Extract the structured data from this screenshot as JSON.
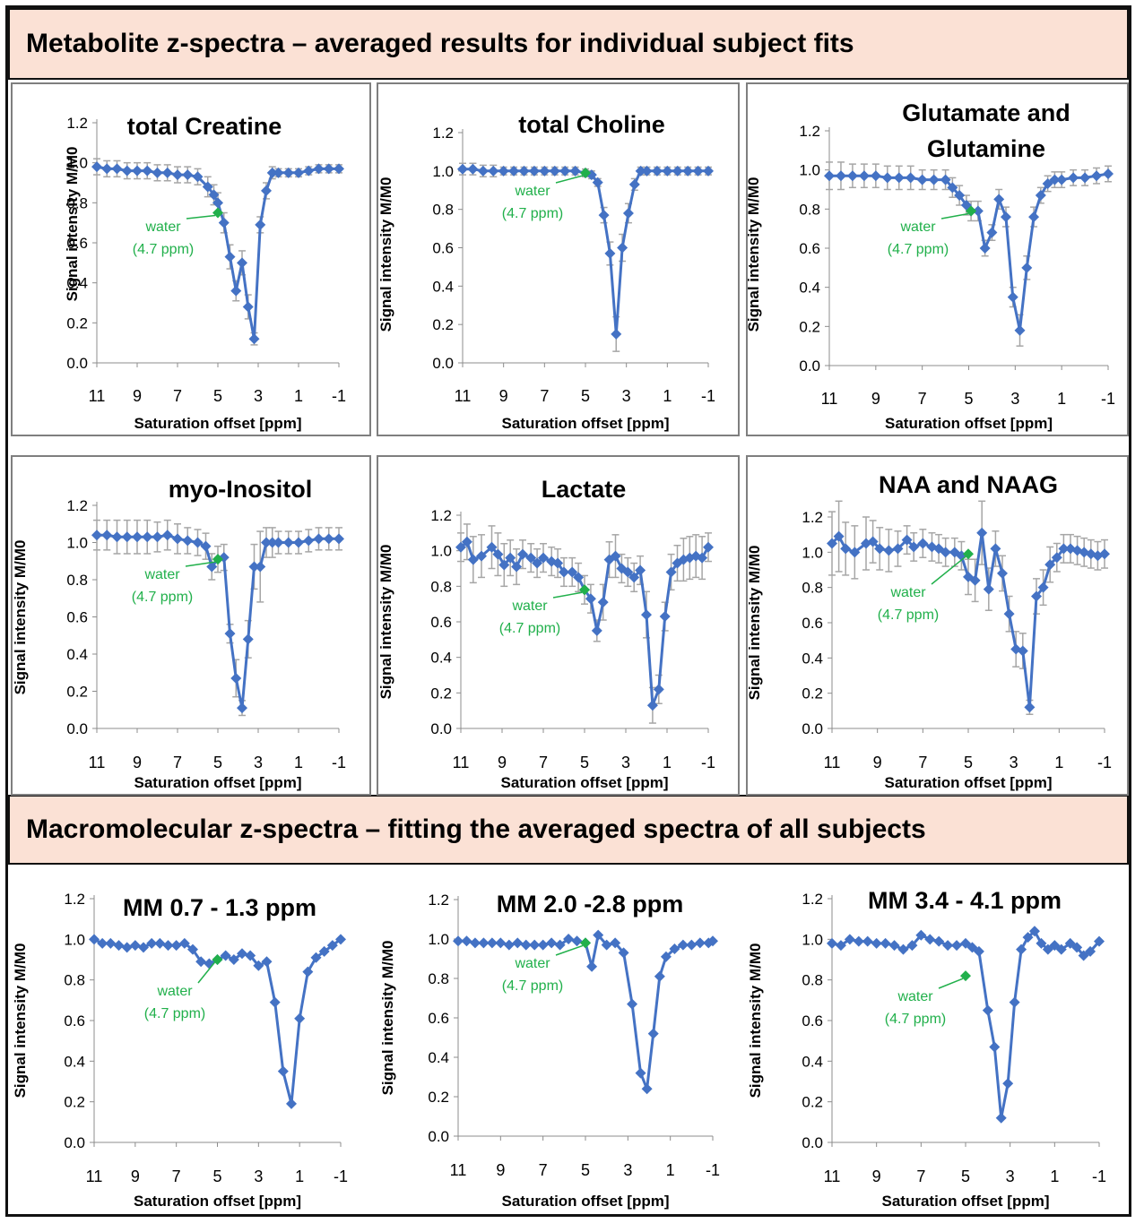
{
  "colors": {
    "series": "#4472c4",
    "errorbar": "#a6a6a6",
    "water": "#21b04b",
    "banner": "#fbe1d5"
  },
  "headers": {
    "metabolite": "Metabolite z-spectra – averaged results for individual subject fits",
    "macromolecular": "Macromolecular z-spectra – fitting the averaged spectra of all subjects"
  },
  "chart_data": [
    {
      "type": "line",
      "title": [
        "total Creatine"
      ],
      "xlabel": "Saturation offset [ppm]",
      "ylabel": "Signal intensity M/M0",
      "xlim": [
        11,
        -1
      ],
      "ylim": [
        0,
        1.2
      ],
      "xticks": [
        "11",
        "9",
        "7",
        "5",
        "3",
        "1",
        "-1"
      ],
      "yticks": [
        "0.0",
        "0.2",
        "0.4",
        "0.6",
        "0.8",
        "1.0",
        "1.2"
      ],
      "water_point": {
        "x": 5.0,
        "y": 0.75
      },
      "annotation": [
        "water",
        "(4.7 ppm)"
      ],
      "x": [
        11,
        10.5,
        10,
        9.5,
        9,
        8.5,
        8,
        7.5,
        7,
        6.5,
        6,
        5.5,
        5.2,
        5,
        4.7,
        4.4,
        4.1,
        3.8,
        3.5,
        3.2,
        2.9,
        2.6,
        2.3,
        2,
        1.5,
        1,
        0.5,
        0,
        -0.5,
        -1
      ],
      "y": [
        0.98,
        0.97,
        0.97,
        0.96,
        0.96,
        0.96,
        0.95,
        0.95,
        0.94,
        0.94,
        0.93,
        0.88,
        0.84,
        0.8,
        0.7,
        0.53,
        0.36,
        0.5,
        0.28,
        0.12,
        0.69,
        0.86,
        0.95,
        0.95,
        0.95,
        0.95,
        0.96,
        0.97,
        0.97,
        0.97
      ],
      "err": [
        0.04,
        0.04,
        0.04,
        0.04,
        0.04,
        0.04,
        0.04,
        0.04,
        0.04,
        0.04,
        0.04,
        0.05,
        0.05,
        0.05,
        0.05,
        0.06,
        0.05,
        0.06,
        0.06,
        0.03,
        0.04,
        0.04,
        0.03,
        0.02,
        0.02,
        0.02,
        0.02,
        0.02,
        0.02,
        0.02
      ]
    },
    {
      "type": "line",
      "title": [
        "total Choline"
      ],
      "xlabel": "Saturation offset [ppm]",
      "ylabel": "Signal intensity M/M0",
      "xlim": [
        11,
        -1
      ],
      "ylim": [
        0,
        1.2
      ],
      "xticks": [
        "11",
        "9",
        "7",
        "5",
        "3",
        "1",
        "-1"
      ],
      "yticks": [
        "0.0",
        "0.2",
        "0.4",
        "0.6",
        "0.8",
        "1.0",
        "1.2"
      ],
      "water_point": {
        "x": 5.0,
        "y": 0.99
      },
      "annotation": [
        "water",
        "(4.7 ppm)"
      ],
      "x": [
        11,
        10.5,
        10,
        9.5,
        9,
        8.5,
        8,
        7.5,
        7,
        6.5,
        6,
        5.5,
        5,
        4.7,
        4.4,
        4.1,
        3.8,
        3.5,
        3.2,
        2.9,
        2.6,
        2.3,
        2,
        1.5,
        1,
        0.5,
        0,
        -0.5,
        -1
      ],
      "y": [
        1.01,
        1.01,
        1.0,
        1.0,
        1.0,
        1.0,
        1.0,
        1.0,
        1.0,
        1.0,
        1.0,
        1.0,
        0.99,
        0.98,
        0.94,
        0.77,
        0.57,
        0.15,
        0.6,
        0.78,
        0.93,
        1.0,
        1.0,
        1.0,
        1.0,
        1.0,
        1.0,
        1.0,
        1.0
      ],
      "err": [
        0.03,
        0.03,
        0.03,
        0.03,
        0.02,
        0.02,
        0.02,
        0.02,
        0.02,
        0.02,
        0.02,
        0.02,
        0.02,
        0.02,
        0.02,
        0.04,
        0.06,
        0.09,
        0.07,
        0.05,
        0.03,
        0.02,
        0.02,
        0.02,
        0.02,
        0.02,
        0.02,
        0.02,
        0.02
      ]
    },
    {
      "type": "line",
      "title": [
        "Glutamate and",
        "Glutamine"
      ],
      "xlabel": "Saturation offset [ppm]",
      "ylabel": "Signal intensity M/M0",
      "xlim": [
        11,
        -1
      ],
      "ylim": [
        0,
        1.2
      ],
      "xticks": [
        "11",
        "9",
        "7",
        "5",
        "3",
        "1",
        "-1"
      ],
      "yticks": [
        "0.0",
        "0.2",
        "0.4",
        "0.6",
        "0.8",
        "1.0",
        "1.2"
      ],
      "water_point": {
        "x": 4.9,
        "y": 0.79
      },
      "annotation": [
        "water",
        "(4.7 ppm)"
      ],
      "x": [
        11,
        10.5,
        10,
        9.5,
        9,
        8.5,
        8,
        7.5,
        7,
        6.5,
        6,
        5.7,
        5.4,
        5.1,
        4.9,
        4.6,
        4.3,
        4.0,
        3.7,
        3.4,
        3.1,
        2.8,
        2.5,
        2.2,
        1.9,
        1.6,
        1.3,
        1,
        0.5,
        0,
        -0.5,
        -1
      ],
      "y": [
        0.97,
        0.97,
        0.97,
        0.97,
        0.97,
        0.96,
        0.96,
        0.96,
        0.95,
        0.95,
        0.95,
        0.91,
        0.87,
        0.82,
        0.79,
        0.79,
        0.6,
        0.68,
        0.85,
        0.76,
        0.35,
        0.18,
        0.5,
        0.76,
        0.87,
        0.93,
        0.95,
        0.95,
        0.96,
        0.96,
        0.97,
        0.98
      ],
      "err": [
        0.07,
        0.07,
        0.06,
        0.06,
        0.06,
        0.06,
        0.06,
        0.06,
        0.05,
        0.05,
        0.05,
        0.05,
        0.05,
        0.05,
        0.05,
        0.05,
        0.04,
        0.04,
        0.05,
        0.05,
        0.05,
        0.08,
        0.06,
        0.05,
        0.04,
        0.04,
        0.04,
        0.04,
        0.04,
        0.04,
        0.04,
        0.04
      ]
    },
    {
      "type": "line",
      "title": [
        "myo-Inositol"
      ],
      "xlabel": "Saturation offset [ppm]",
      "ylabel": "Signal intensity M/M0",
      "xlim": [
        11,
        -1
      ],
      "ylim": [
        0,
        1.2
      ],
      "xticks": [
        "11",
        "9",
        "7",
        "5",
        "3",
        "1",
        "-1"
      ],
      "yticks": [
        "0.0",
        "0.2",
        "0.4",
        "0.6",
        "0.8",
        "1.0",
        "1.2"
      ],
      "water_point": {
        "x": 5.0,
        "y": 0.91
      },
      "annotation": [
        "water",
        "(4.7 ppm)"
      ],
      "x": [
        11,
        10.5,
        10,
        9.5,
        9,
        8.5,
        8,
        7.5,
        7,
        6.5,
        6,
        5.6,
        5.3,
        5.0,
        4.7,
        4.4,
        4.1,
        3.8,
        3.5,
        3.2,
        2.9,
        2.6,
        2.3,
        2,
        1.5,
        1,
        0.5,
        0,
        -0.5,
        -1
      ],
      "y": [
        1.04,
        1.04,
        1.03,
        1.03,
        1.03,
        1.03,
        1.03,
        1.04,
        1.02,
        1.01,
        1.0,
        0.98,
        0.87,
        0.91,
        0.92,
        0.51,
        0.27,
        0.11,
        0.48,
        0.87,
        0.87,
        1.0,
        1.0,
        1.0,
        1.0,
        1.0,
        1.01,
        1.02,
        1.02,
        1.02
      ],
      "err": [
        0.08,
        0.08,
        0.09,
        0.09,
        0.09,
        0.09,
        0.08,
        0.08,
        0.08,
        0.07,
        0.07,
        0.07,
        0.07,
        0.07,
        0.07,
        0.05,
        0.1,
        0.04,
        0.1,
        0.12,
        0.19,
        0.08,
        0.08,
        0.06,
        0.06,
        0.06,
        0.06,
        0.06,
        0.06,
        0.06
      ]
    },
    {
      "type": "line",
      "title": [
        "Lactate"
      ],
      "xlabel": "Saturation offset [ppm]",
      "ylabel": "Signal intensity M/M0",
      "xlim": [
        11,
        -1
      ],
      "ylim": [
        0,
        1.2
      ],
      "xticks": [
        "11",
        "9",
        "7",
        "5",
        "3",
        "1",
        "-1"
      ],
      "yticks": [
        "0.0",
        "0.2",
        "0.4",
        "0.6",
        "0.8",
        "1.0",
        "1.2"
      ],
      "water_point": {
        "x": 5.0,
        "y": 0.78
      },
      "annotation": [
        "water",
        "(4.7 ppm)"
      ],
      "x": [
        11,
        10.7,
        10.4,
        10,
        9.5,
        9.2,
        8.9,
        8.6,
        8.3,
        8,
        7.6,
        7.3,
        7,
        6.6,
        6.3,
        6,
        5.6,
        5.3,
        5,
        4.7,
        4.4,
        4.1,
        3.8,
        3.5,
        3.2,
        2.9,
        2.6,
        2.3,
        2,
        1.7,
        1.4,
        1.1,
        0.8,
        0.5,
        0.2,
        -0.1,
        -0.4,
        -0.7,
        -1
      ],
      "y": [
        1.02,
        1.05,
        0.95,
        0.97,
        1.02,
        0.98,
        0.92,
        0.96,
        0.91,
        0.98,
        0.96,
        0.93,
        0.96,
        0.94,
        0.93,
        0.88,
        0.88,
        0.85,
        0.78,
        0.73,
        0.55,
        0.71,
        0.95,
        0.97,
        0.9,
        0.88,
        0.85,
        0.89,
        0.64,
        0.13,
        0.22,
        0.63,
        0.88,
        0.93,
        0.95,
        0.96,
        0.97,
        0.96,
        1.02
      ],
      "err": [
        0.08,
        0.1,
        0.13,
        0.12,
        0.12,
        0.12,
        0.12,
        0.1,
        0.1,
        0.08,
        0.08,
        0.08,
        0.08,
        0.08,
        0.08,
        0.08,
        0.08,
        0.08,
        0.08,
        0.08,
        0.06,
        0.1,
        0.1,
        0.12,
        0.08,
        0.08,
        0.08,
        0.08,
        0.13,
        0.1,
        0.08,
        0.08,
        0.1,
        0.1,
        0.12,
        0.12,
        0.12,
        0.12,
        0.08
      ]
    },
    {
      "type": "line",
      "title": [
        "NAA and NAAG"
      ],
      "xlabel": "Saturation offset [ppm]",
      "ylabel": "Signal intensity M/M0",
      "xlim": [
        11,
        -1
      ],
      "ylim": [
        0,
        1.2
      ],
      "xticks": [
        "11",
        "9",
        "7",
        "5",
        "3",
        "1",
        "-1"
      ],
      "yticks": [
        "0.0",
        "0.2",
        "0.4",
        "0.6",
        "0.8",
        "1.0",
        "1.2"
      ],
      "water_point": {
        "x": 5.0,
        "y": 0.99
      },
      "annotation": [
        "water",
        "(4.7 ppm)"
      ],
      "x": [
        11,
        10.7,
        10.4,
        10,
        9.5,
        9.2,
        8.9,
        8.5,
        8.1,
        7.7,
        7.4,
        7,
        6.6,
        6.3,
        6,
        5.6,
        5.3,
        5,
        4.7,
        4.4,
        4.1,
        3.8,
        3.5,
        3.2,
        2.9,
        2.6,
        2.3,
        2,
        1.7,
        1.4,
        1.1,
        0.8,
        0.5,
        0.2,
        -0.1,
        -0.4,
        -0.7,
        -1
      ],
      "y": [
        1.05,
        1.09,
        1.02,
        1.0,
        1.05,
        1.06,
        1.02,
        1.01,
        1.02,
        1.07,
        1.03,
        1.05,
        1.03,
        1.02,
        1.0,
        1.0,
        0.98,
        0.86,
        0.84,
        1.11,
        0.79,
        1.02,
        0.88,
        0.65,
        0.45,
        0.44,
        0.12,
        0.75,
        0.8,
        0.93,
        0.97,
        1.02,
        1.02,
        1.01,
        1.0,
        0.99,
        0.98,
        0.99
      ],
      "err": [
        0.18,
        0.2,
        0.15,
        0.15,
        0.15,
        0.12,
        0.12,
        0.12,
        0.1,
        0.08,
        0.08,
        0.08,
        0.08,
        0.08,
        0.08,
        0.08,
        0.08,
        0.1,
        0.12,
        0.18,
        0.12,
        0.1,
        0.1,
        0.1,
        0.1,
        0.1,
        0.04,
        0.1,
        0.1,
        0.1,
        0.08,
        0.08,
        0.08,
        0.08,
        0.08,
        0.08,
        0.08,
        0.08
      ]
    },
    {
      "type": "line",
      "title": [
        "MM 0.7 - 1.3 ppm"
      ],
      "xlabel": "Saturation offset [ppm]",
      "ylabel": "Signal intensity M/M0",
      "xlim": [
        11,
        -1
      ],
      "ylim": [
        0,
        1.2
      ],
      "xticks": [
        "11",
        "9",
        "7",
        "5",
        "3",
        "1",
        "-1"
      ],
      "yticks": [
        "0.0",
        "0.2",
        "0.4",
        "0.6",
        "0.8",
        "1.0",
        "1.2"
      ],
      "water_point": {
        "x": 5.0,
        "y": 0.9
      },
      "annotation": [
        "water",
        "(4.7 ppm)"
      ],
      "x": [
        11,
        10.6,
        10.2,
        9.8,
        9.4,
        9,
        8.6,
        8.2,
        7.8,
        7.4,
        7,
        6.6,
        6.2,
        5.8,
        5.4,
        5.0,
        4.6,
        4.2,
        3.8,
        3.4,
        3.0,
        2.6,
        2.2,
        1.8,
        1.4,
        1.0,
        0.6,
        0.2,
        -0.2,
        -0.6,
        -1
      ],
      "y": [
        1.0,
        0.98,
        0.98,
        0.97,
        0.96,
        0.97,
        0.96,
        0.98,
        0.98,
        0.97,
        0.97,
        0.98,
        0.95,
        0.89,
        0.88,
        0.9,
        0.92,
        0.9,
        0.93,
        0.92,
        0.87,
        0.89,
        0.69,
        0.35,
        0.19,
        0.61,
        0.84,
        0.91,
        0.94,
        0.97,
        1.0
      ],
      "err": []
    },
    {
      "type": "line",
      "title": [
        "MM 2.0 -2.8 ppm"
      ],
      "xlabel": "Saturation offset [ppm]",
      "ylabel": "Signal intensity M/M0",
      "xlim": [
        11,
        -1
      ],
      "ylim": [
        0,
        1.2
      ],
      "xticks": [
        "11",
        "9",
        "7",
        "5",
        "3",
        "1",
        "-1"
      ],
      "yticks": [
        "0.0",
        "0.2",
        "0.4",
        "0.6",
        "0.8",
        "1.0",
        "1.2"
      ],
      "water_point": {
        "x": 5.0,
        "y": 0.98
      },
      "annotation": [
        "water",
        "(4.7 ppm)"
      ],
      "x": [
        11,
        10.6,
        10.2,
        9.8,
        9.4,
        9,
        8.6,
        8.2,
        7.8,
        7.4,
        7,
        6.6,
        6.2,
        5.8,
        5.4,
        5.0,
        4.7,
        4.4,
        4.0,
        3.6,
        3.2,
        2.8,
        2.4,
        2.1,
        1.8,
        1.5,
        1.2,
        0.8,
        0.4,
        0,
        -0.4,
        -0.8,
        -1
      ],
      "y": [
        0.99,
        0.99,
        0.98,
        0.98,
        0.98,
        0.98,
        0.97,
        0.98,
        0.97,
        0.97,
        0.97,
        0.98,
        0.97,
        1.0,
        0.99,
        0.98,
        0.86,
        1.02,
        0.97,
        0.98,
        0.93,
        0.67,
        0.32,
        0.24,
        0.52,
        0.81,
        0.91,
        0.95,
        0.97,
        0.97,
        0.98,
        0.98,
        0.99
      ],
      "err": []
    },
    {
      "type": "line",
      "title": [
        "MM 3.4 - 4.1 ppm"
      ],
      "xlabel": "Saturation offset [ppm]",
      "ylabel": "Signal intensity M/M0",
      "xlim": [
        11,
        -1
      ],
      "ylim": [
        0,
        1.2
      ],
      "xticks": [
        "11",
        "9",
        "7",
        "5",
        "3",
        "1",
        "-1"
      ],
      "yticks": [
        "0.0",
        "0.2",
        "0.4",
        "0.6",
        "0.8",
        "1.0",
        "1.2"
      ],
      "water_point": {
        "x": 5.0,
        "y": 0.82
      },
      "annotation": [
        "water",
        "(4.7 ppm)"
      ],
      "x": [
        11,
        10.6,
        10.2,
        9.8,
        9.4,
        9,
        8.6,
        8.2,
        7.8,
        7.4,
        7,
        6.6,
        6.2,
        5.8,
        5.4,
        5.0,
        4.7,
        4.4,
        4.0,
        3.7,
        3.4,
        3.1,
        2.8,
        2.5,
        2.2,
        1.9,
        1.6,
        1.3,
        1.0,
        0.7,
        0.3,
        0,
        -0.3,
        -0.6,
        -1
      ],
      "y": [
        0.98,
        0.97,
        1.0,
        0.99,
        0.99,
        0.98,
        0.98,
        0.97,
        0.95,
        0.97,
        1.02,
        1.0,
        0.99,
        0.97,
        0.97,
        0.98,
        0.96,
        0.94,
        0.65,
        0.47,
        0.12,
        0.29,
        0.69,
        0.95,
        1.01,
        1.04,
        0.98,
        0.95,
        0.97,
        0.95,
        0.98,
        0.96,
        0.92,
        0.94,
        0.99
      ],
      "err": []
    }
  ]
}
